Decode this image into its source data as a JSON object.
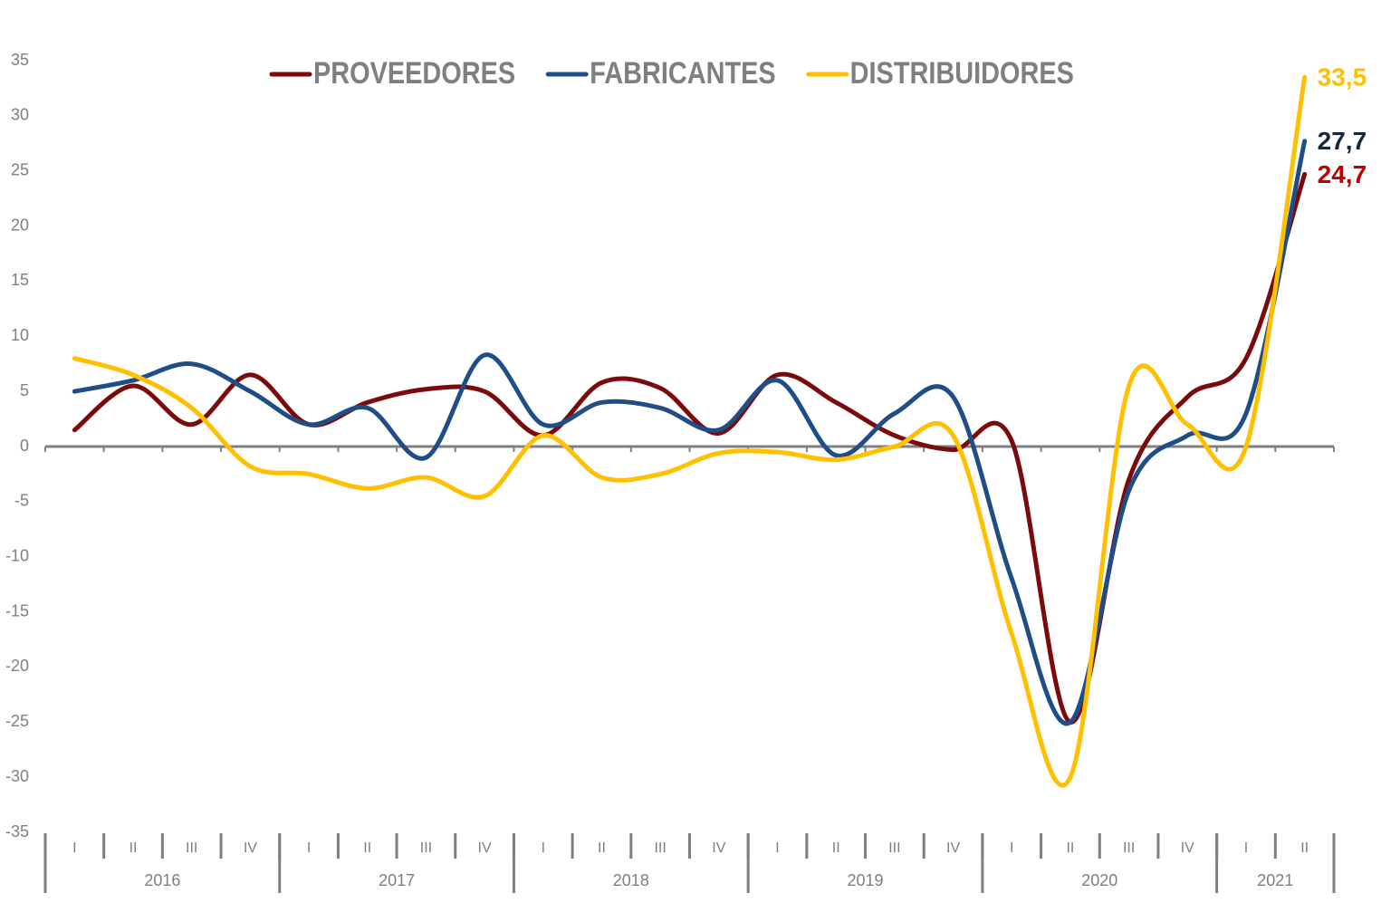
{
  "chart_data": {
    "type": "line",
    "categories": [
      "I",
      "II",
      "III",
      "IV",
      "I",
      "II",
      "III",
      "IV",
      "I",
      "II",
      "III",
      "IV",
      "I",
      "II",
      "III",
      "IV",
      "I",
      "II",
      "III",
      "IV",
      "I",
      "II"
    ],
    "groups": [
      {
        "label": "2016",
        "count": 4
      },
      {
        "label": "2017",
        "count": 4
      },
      {
        "label": "2018",
        "count": 4
      },
      {
        "label": "2019",
        "count": 4
      },
      {
        "label": "2020",
        "count": 4
      },
      {
        "label": "2021",
        "count": 2
      }
    ],
    "series": [
      {
        "name": "PROVEEDORES",
        "color": "#7b0a0a",
        "label_color": "#c00000",
        "values": [
          1.5,
          5.5,
          2,
          6.5,
          2,
          4,
          5.2,
          5,
          1,
          5.8,
          5.3,
          1.2,
          6.5,
          4,
          1,
          -0.3,
          0.5,
          -25,
          -3,
          4.5,
          8,
          24.7
        ],
        "value_labels": [
          null,
          null,
          null,
          null,
          null,
          null,
          null,
          null,
          null,
          null,
          null,
          null,
          null,
          null,
          null,
          null,
          null,
          null,
          null,
          null,
          null,
          "24,7"
        ]
      },
      {
        "name": "FABRICANTES",
        "color": "#1f4e86",
        "label_color": "#17263f",
        "values": [
          5,
          6,
          7.5,
          5,
          2,
          3.5,
          -1,
          8.3,
          2,
          4,
          3.5,
          1.5,
          6,
          -0.8,
          3,
          4.5,
          -12,
          -25,
          -4,
          1,
          3,
          27.7
        ],
        "value_labels": [
          null,
          null,
          null,
          null,
          null,
          null,
          null,
          null,
          null,
          null,
          null,
          null,
          null,
          null,
          null,
          null,
          null,
          null,
          null,
          null,
          null,
          "27,7"
        ]
      },
      {
        "name": "DISTRIBUIDORES",
        "color": "#ffc000",
        "label_color": "#ffc000",
        "values": [
          8,
          6.5,
          3.5,
          -1.8,
          -2.5,
          -3.8,
          -2.8,
          -4.5,
          1,
          -2.8,
          -2.5,
          -0.6,
          -0.5,
          -1.2,
          0,
          1,
          -17,
          -30,
          5.5,
          2,
          0,
          33.5
        ],
        "value_labels": [
          null,
          null,
          null,
          null,
          null,
          null,
          null,
          null,
          null,
          null,
          null,
          null,
          null,
          null,
          null,
          null,
          null,
          null,
          null,
          null,
          null,
          "33,5"
        ]
      }
    ],
    "ylim": [
      -35,
      35
    ],
    "yticks": [
      35,
      30,
      25,
      20,
      15,
      10,
      5,
      0,
      -5,
      -10,
      -15,
      -20,
      -25,
      -30,
      -35
    ],
    "legend": "top",
    "grid": false
  }
}
